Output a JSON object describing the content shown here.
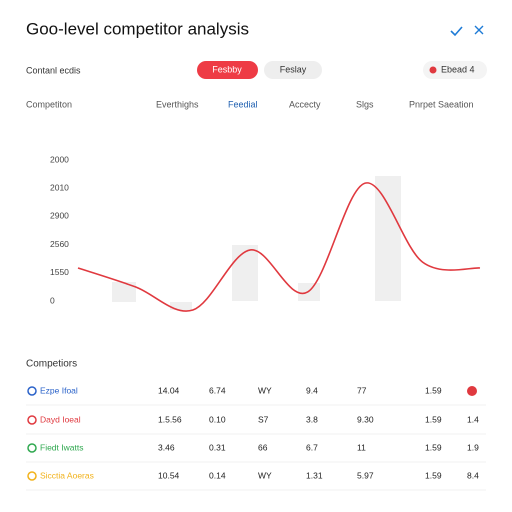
{
  "header": {
    "title": "Goo-level competitor analysis"
  },
  "filters": {
    "label": "Contanl ecdis",
    "primary": "Fesbby",
    "secondary": "Feslay",
    "badge": "Ebead 4"
  },
  "tabs": {
    "items": [
      "Competiton",
      "Everthighs",
      "Feedial",
      "Accecty",
      "Slgs",
      "Pnrpet Saeation"
    ],
    "active": 2
  },
  "chart_data": {
    "type": "line",
    "categories": [
      null,
      null,
      null,
      null,
      null,
      null,
      null,
      null
    ],
    "series": [
      {
        "color": "#e0393f",
        "values": [
          1.17,
          0.5,
          -0.32,
          1.81,
          0.32,
          4.18,
          1.38,
          1.17
        ]
      }
    ],
    "ylim": [
      0,
      5
    ],
    "yticks": [
      0,
      {
        "value": 1,
        "label": "1550"
      },
      {
        "value": 2,
        "label": "2560"
      },
      {
        "value": 3,
        "label": "2900"
      },
      {
        "value": 4,
        "label": "2010"
      },
      {
        "value": 5,
        "label": "2000"
      }
    ]
  },
  "table": {
    "title": "Competiors",
    "rows": [
      [
        "Ezpe Ifoal",
        "14.04",
        "6.74",
        "WY",
        "9.4",
        "77",
        "1.59",
        null
      ],
      [
        "Dayd Ioeal",
        "1.5.56",
        "0.10",
        "S7",
        "3.8",
        "9.30",
        "1.59",
        "1.4"
      ],
      [
        "Fiedt Iwatts",
        "3.46",
        "0.31",
        "66",
        "6.7",
        "11",
        "1.59",
        "1.9"
      ],
      [
        "Sicctia Aoeras",
        "10.54",
        "0.14",
        "WY",
        "1.31",
        "5.97",
        "1.59",
        "8.4"
      ]
    ]
  }
}
